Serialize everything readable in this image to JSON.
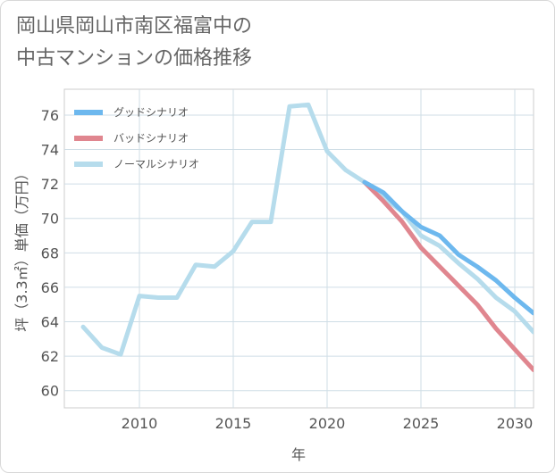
{
  "title": {
    "line1": "岡山県岡山市南区福富中の",
    "line2": "中古マンションの価格推移"
  },
  "chart_data": {
    "type": "line",
    "xlabel": "年",
    "ylabel": "坪（3.3㎡）単価（万円）",
    "xlim": [
      2006,
      2031
    ],
    "ylim": [
      59,
      77.5
    ],
    "xticks": [
      2010,
      2015,
      2020,
      2025,
      2030
    ],
    "yticks": [
      60,
      62,
      64,
      66,
      68,
      70,
      72,
      74,
      76
    ],
    "grid": true,
    "legend_position": "top-left",
    "series": [
      {
        "name": "グッドシナリオ",
        "color": "#6db8ee",
        "x": [
          2022,
          2023,
          2024,
          2025,
          2026,
          2027,
          2028,
          2029,
          2030,
          2031
        ],
        "y": [
          72.1,
          71.5,
          70.4,
          69.5,
          69.0,
          67.9,
          67.2,
          66.4,
          65.4,
          64.5
        ]
      },
      {
        "name": "バッドシナリオ",
        "color": "#e0868f",
        "x": [
          2022,
          2023,
          2024,
          2025,
          2026,
          2027,
          2028,
          2029,
          2030,
          2031
        ],
        "y": [
          72.1,
          71.0,
          69.8,
          68.3,
          67.2,
          66.1,
          65.0,
          63.6,
          62.4,
          61.2
        ]
      },
      {
        "name": "ノーマルシナリオ",
        "color": "#b6dcec",
        "x": [
          2007,
          2008,
          2009,
          2010,
          2011,
          2012,
          2013,
          2014,
          2015,
          2016,
          2017,
          2018,
          2019,
          2020,
          2021,
          2022,
          2023,
          2024,
          2025,
          2026,
          2027,
          2028,
          2029,
          2030,
          2031
        ],
        "y": [
          63.7,
          62.5,
          62.1,
          65.5,
          65.4,
          65.4,
          67.3,
          67.2,
          68.1,
          69.8,
          69.8,
          76.5,
          76.6,
          73.9,
          72.8,
          72.1,
          71.2,
          70.4,
          69.0,
          68.4,
          67.4,
          66.5,
          65.4,
          64.6,
          63.4
        ]
      }
    ]
  }
}
